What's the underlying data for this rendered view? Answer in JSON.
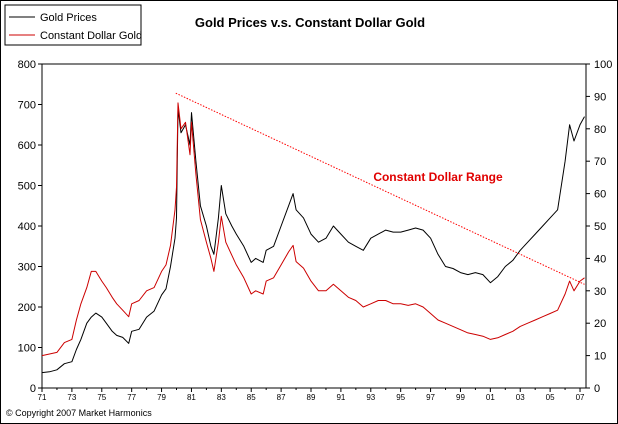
{
  "chart_data": {
    "type": "line",
    "title": "Gold Prices v.s. Constant Dollar Gold",
    "annotation": "Constant Dollar Range",
    "copyright": "© Copyright 2007 Market Harmonics",
    "x_tick_labels": [
      "71",
      "73",
      "75",
      "77",
      "79",
      "81",
      "83",
      "85",
      "87",
      "89",
      "91",
      "93",
      "95",
      "97",
      "99",
      "01",
      "03",
      "05",
      "07"
    ],
    "xlim": [
      1971,
      2007.4
    ],
    "left_axis": {
      "ylim": [
        0,
        800
      ],
      "ticks": [
        0,
        100,
        200,
        300,
        400,
        500,
        600,
        700,
        800
      ]
    },
    "right_axis": {
      "ylim": [
        0,
        100
      ],
      "ticks": [
        0,
        10,
        20,
        30,
        40,
        50,
        60,
        70,
        80,
        90,
        100
      ]
    },
    "grid": false,
    "legend_position": "top-left",
    "colors": {
      "gold": "#000000",
      "constant": "#cc0000",
      "range_line": "#ff0000",
      "annotation": "#e00000"
    },
    "series": [
      {
        "name": "Gold Prices",
        "axis": "left",
        "x": [
          1971,
          1971.5,
          1972,
          1972.5,
          1973,
          1973.3,
          1973.6,
          1974,
          1974.3,
          1974.6,
          1975,
          1975.3,
          1975.7,
          1976,
          1976.4,
          1976.8,
          1977,
          1977.5,
          1978,
          1978.5,
          1979,
          1979.3,
          1979.6,
          1979.9,
          1980,
          1980.1,
          1980.3,
          1980.6,
          1980.9,
          1981,
          1981.3,
          1981.6,
          1982,
          1982.3,
          1982.5,
          1982.8,
          1983,
          1983.3,
          1983.7,
          1984,
          1984.5,
          1985,
          1985.3,
          1985.8,
          1986,
          1986.5,
          1987,
          1987.5,
          1987.8,
          1988,
          1988.5,
          1989,
          1989.5,
          1990,
          1990.5,
          1991,
          1991.5,
          1992,
          1992.5,
          1993,
          1993.5,
          1994,
          1994.5,
          1995,
          1995.5,
          1996,
          1996.5,
          1997,
          1997.5,
          1998,
          1998.5,
          1999,
          1999.5,
          2000,
          2000.5,
          2001,
          2001.5,
          2002,
          2002.5,
          2003,
          2003.5,
          2004,
          2004.5,
          2005,
          2005.5,
          2006,
          2006.3,
          2006.6,
          2007,
          2007.3
        ],
        "values": [
          38,
          40,
          45,
          60,
          65,
          95,
          120,
          160,
          175,
          185,
          175,
          160,
          140,
          130,
          125,
          110,
          140,
          145,
          175,
          190,
          230,
          245,
          300,
          370,
          420,
          690,
          630,
          650,
          600,
          680,
          560,
          450,
          400,
          350,
          330,
          420,
          500,
          430,
          400,
          380,
          350,
          310,
          320,
          310,
          340,
          350,
          400,
          450,
          480,
          440,
          420,
          380,
          360,
          370,
          400,
          380,
          360,
          350,
          340,
          370,
          380,
          390,
          385,
          385,
          390,
          395,
          390,
          370,
          330,
          300,
          295,
          285,
          280,
          285,
          280,
          260,
          275,
          300,
          315,
          340,
          360,
          380,
          400,
          420,
          440,
          560,
          650,
          610,
          650,
          670
        ]
      },
      {
        "name": "Constant Dollar Gold",
        "axis": "right",
        "x": [
          1971,
          1971.5,
          1972,
          1972.5,
          1973,
          1973.3,
          1973.6,
          1974,
          1974.3,
          1974.6,
          1975,
          1975.3,
          1975.7,
          1976,
          1976.4,
          1976.8,
          1977,
          1977.5,
          1978,
          1978.5,
          1979,
          1979.3,
          1979.6,
          1979.9,
          1980,
          1980.1,
          1980.3,
          1980.6,
          1980.9,
          1981,
          1981.3,
          1981.6,
          1982,
          1982.3,
          1982.5,
          1982.8,
          1983,
          1983.3,
          1983.7,
          1984,
          1984.5,
          1985,
          1985.3,
          1985.8,
          1986,
          1986.5,
          1987,
          1987.5,
          1987.8,
          1988,
          1988.5,
          1989,
          1989.5,
          1990,
          1990.5,
          1991,
          1991.5,
          1992,
          1992.5,
          1993,
          1993.5,
          1994,
          1994.5,
          1995,
          1995.5,
          1996,
          1996.5,
          1997,
          1997.5,
          1998,
          1998.5,
          1999,
          1999.5,
          2000,
          2000.5,
          2001,
          2001.5,
          2002,
          2002.5,
          2003,
          2003.5,
          2004,
          2004.5,
          2005,
          2005.5,
          2006,
          2006.3,
          2006.6,
          2007,
          2007.3
        ],
        "values": [
          10,
          10.5,
          11,
          14,
          15,
          21,
          26,
          31,
          36,
          36,
          33,
          31,
          28,
          26,
          24,
          22,
          26,
          27,
          30,
          31,
          36,
          38,
          44,
          55,
          62,
          88,
          80,
          82,
          72,
          82,
          66,
          52,
          45,
          40,
          36,
          45,
          53,
          45,
          41,
          38,
          34,
          29,
          30,
          29,
          33,
          34,
          38,
          42,
          44,
          39,
          37,
          33,
          30,
          30,
          32,
          30,
          28,
          27,
          25,
          26,
          27,
          27,
          26,
          26,
          25.5,
          26,
          25,
          23,
          21,
          20,
          19,
          18,
          17,
          16.5,
          16,
          15,
          15.5,
          16.5,
          17.5,
          19,
          20,
          21,
          22,
          23,
          24,
          29,
          33,
          30,
          33,
          34
        ]
      }
    ],
    "range_line": {
      "axis": "right",
      "x": [
        1979.95,
        2007.3
      ],
      "values": [
        91,
        32
      ]
    }
  }
}
